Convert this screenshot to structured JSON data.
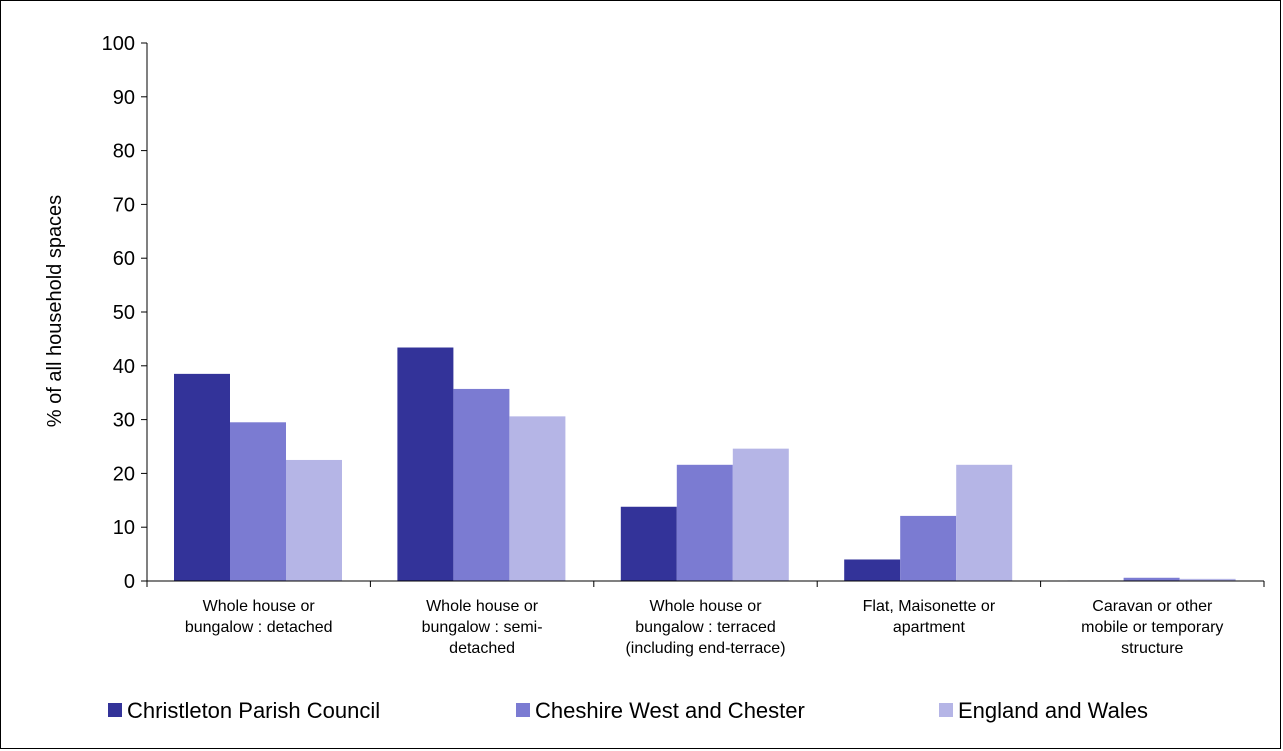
{
  "chart_data": {
    "type": "bar",
    "title": "",
    "xlabel": "",
    "ylabel": "% of all household spaces",
    "ylim": [
      0,
      100
    ],
    "yticks": [
      0,
      10,
      20,
      30,
      40,
      50,
      60,
      70,
      80,
      90,
      100
    ],
    "grid": false,
    "legend_position": "bottom",
    "categories": [
      [
        "Whole house or",
        "bungalow : detached"
      ],
      [
        "Whole house or",
        "bungalow : semi-",
        "detached"
      ],
      [
        "Whole house or",
        "bungalow : terraced",
        "(including end-terrace)"
      ],
      [
        "Flat, Maisonette or",
        "apartment"
      ],
      [
        "Caravan or other",
        "mobile or temporary",
        "structure"
      ]
    ],
    "series": [
      {
        "name": "Christleton Parish Council",
        "color": "#333399",
        "values": [
          38.5,
          43.4,
          13.8,
          4.0,
          0.1
        ]
      },
      {
        "name": "Cheshire West and Chester",
        "color": "#7b7bd2",
        "values": [
          29.5,
          35.7,
          21.6,
          12.1,
          0.6
        ]
      },
      {
        "name": "England and Wales",
        "color": "#b5b5e6",
        "values": [
          22.5,
          30.6,
          24.6,
          21.6,
          0.4
        ]
      }
    ]
  }
}
